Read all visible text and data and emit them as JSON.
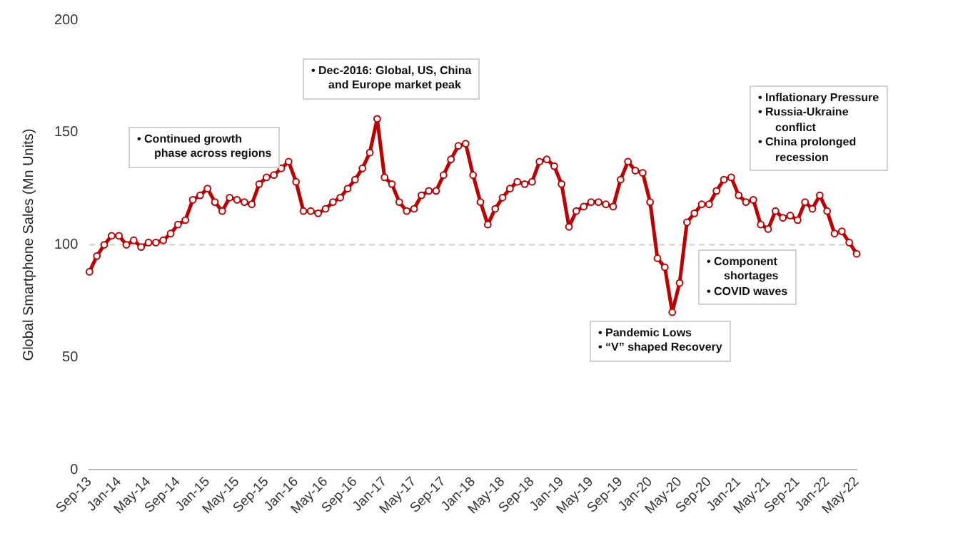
{
  "chart_data": {
    "type": "line",
    "ylabel": "Global Smartphone Sales (Mn Units)",
    "categories": [
      "Sep-13",
      null,
      null,
      null,
      "Jan-14",
      null,
      null,
      null,
      "May-14",
      null,
      null,
      null,
      "Sep-14",
      null,
      null,
      null,
      "Jan-15",
      null,
      null,
      null,
      "May-15",
      null,
      null,
      null,
      "Sep-15",
      null,
      null,
      null,
      "Jan-16",
      null,
      null,
      null,
      "May-16",
      null,
      null,
      null,
      "Sep-16",
      null,
      null,
      null,
      "Jan-17",
      null,
      null,
      null,
      "May-17",
      null,
      null,
      null,
      "Sep-17",
      null,
      null,
      null,
      "Jan-18",
      null,
      null,
      null,
      "May-18",
      null,
      null,
      null,
      "Sep-18",
      null,
      null,
      null,
      "Jan-19",
      null,
      null,
      null,
      "May-19",
      null,
      null,
      null,
      "Sep-19",
      null,
      null,
      null,
      "Jan-20",
      null,
      null,
      null,
      "May-20",
      null,
      null,
      null,
      "Sep-20",
      null,
      null,
      null,
      "Jan-21",
      null,
      null,
      null,
      "May-21",
      null,
      null,
      null,
      "Sep-21",
      null,
      null,
      null,
      "Jan-22",
      null,
      null,
      null,
      "May-22"
    ],
    "series": [
      {
        "color": "#c00000",
        "values": [
          88,
          95,
          100,
          104,
          104,
          100,
          102,
          99,
          101,
          101,
          102,
          105,
          109,
          111,
          120,
          122,
          125,
          119,
          115,
          121,
          120,
          119,
          118,
          127,
          130,
          131,
          134,
          137,
          128,
          115,
          115,
          114,
          116,
          119,
          121,
          125,
          129,
          134,
          141,
          156,
          130,
          127,
          119,
          115,
          116,
          122,
          124,
          124,
          131,
          138,
          144,
          145,
          131,
          119,
          109,
          116,
          121,
          125,
          128,
          127,
          128,
          137,
          138,
          135,
          127,
          108,
          115,
          117,
          119,
          119,
          118,
          117,
          129,
          137,
          133,
          132,
          119,
          94,
          90,
          70,
          83,
          110,
          114,
          118,
          118,
          124,
          129,
          130,
          122,
          119,
          120,
          109,
          107,
          115,
          112,
          113,
          111,
          119,
          116,
          122,
          115,
          105,
          106,
          101,
          96
        ]
      }
    ],
    "ylim": [
      0,
      200
    ],
    "yticks": [
      0,
      50,
      100,
      150,
      200
    ],
    "grid": false,
    "legend": false,
    "marker": "circle",
    "line_style": "solid",
    "ref_lines": [
      {
        "axis": "y",
        "value": 100,
        "color": "#cccccc",
        "line_style": "dashed"
      }
    ],
    "annotations": [
      "• Continued growth phase across regions",
      "• Dec-2016: Global, US, China and Europe market peak",
      "• Inflationary Pressure\n• Russia-Ukraine conflict\n• China prolonged recession",
      "• Component shortages\n• COVID waves",
      "• Pandemic Lows\n• “V” shaped Recovery"
    ]
  }
}
